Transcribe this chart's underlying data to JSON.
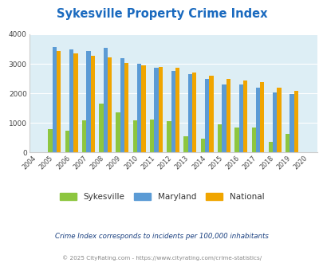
{
  "title": "Sykesville Property Crime Index",
  "years": [
    2004,
    2005,
    2006,
    2007,
    2008,
    2009,
    2010,
    2011,
    2012,
    2013,
    2014,
    2015,
    2016,
    2017,
    2018,
    2019,
    2020
  ],
  "sykesville": [
    0,
    800,
    730,
    1090,
    1650,
    1360,
    1100,
    1120,
    1060,
    550,
    470,
    960,
    840,
    850,
    350,
    620,
    0
  ],
  "maryland": [
    0,
    3560,
    3480,
    3440,
    3540,
    3200,
    3000,
    2870,
    2760,
    2660,
    2500,
    2310,
    2290,
    2200,
    2020,
    1970,
    0
  ],
  "national": [
    0,
    3430,
    3350,
    3280,
    3210,
    3040,
    2960,
    2900,
    2860,
    2700,
    2590,
    2490,
    2440,
    2370,
    2200,
    2090,
    0
  ],
  "bar_colors": {
    "sykesville": "#8dc63f",
    "maryland": "#5b9bd5",
    "national": "#f0a500"
  },
  "ylim": [
    0,
    4000
  ],
  "yticks": [
    0,
    1000,
    2000,
    3000,
    4000
  ],
  "bg_color": "#ffffff",
  "plot_bg": "#ddeef5",
  "grid_color": "#ffffff",
  "title_color": "#1a6abf",
  "subtitle": "Crime Index corresponds to incidents per 100,000 inhabitants",
  "footer": "© 2025 CityRating.com - https://www.cityrating.com/crime-statistics/",
  "subtitle_color": "#1a4080",
  "footer_color": "#888888",
  "legend_labels": [
    "Sykesville",
    "Maryland",
    "National"
  ]
}
